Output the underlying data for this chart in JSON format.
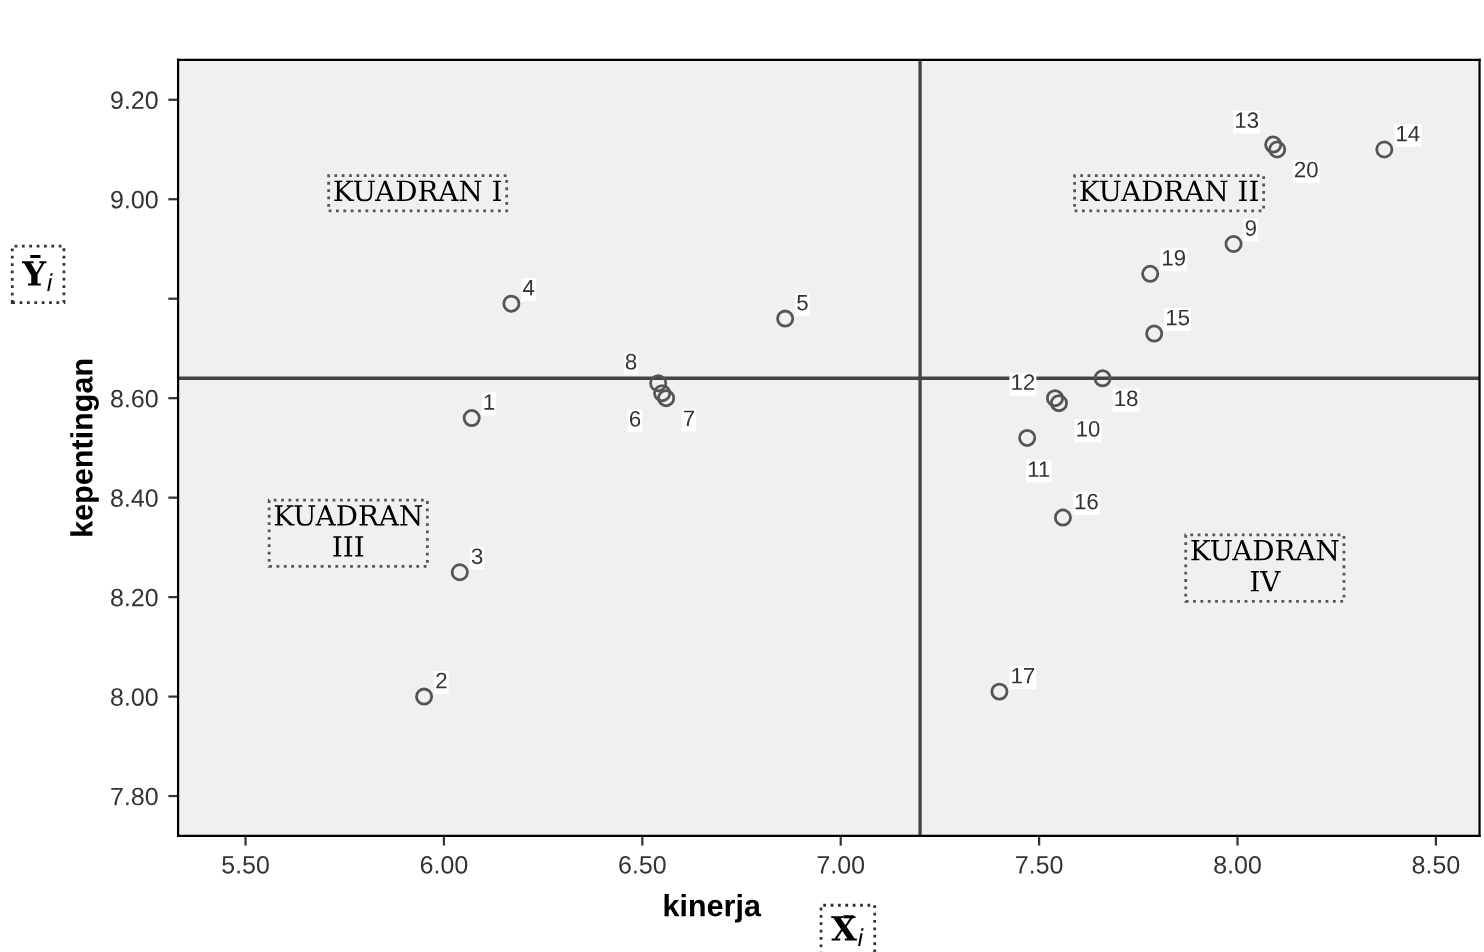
{
  "chart_data": {
    "type": "scatter",
    "xlabel": "kinerja",
    "ylabel": "kepentingan",
    "x": [
      6.07,
      5.95,
      6.04,
      6.17,
      6.86,
      6.55,
      6.56,
      6.54,
      7.99,
      7.55,
      7.47,
      7.54,
      8.09,
      8.37,
      7.79,
      7.56,
      7.4,
      7.66,
      7.78,
      8.1
    ],
    "series": [
      {
        "color": "#555555",
        "values": [
          8.56,
          8.0,
          8.25,
          8.79,
          8.76,
          8.61,
          8.6,
          8.63,
          8.91,
          8.59,
          8.52,
          8.6,
          9.11,
          9.1,
          8.73,
          8.36,
          8.01,
          8.64,
          8.85,
          9.1
        ]
      }
    ],
    "marker": "circle",
    "grid": false,
    "xlim": [
      5.33,
      8.61
    ],
    "ylim": [
      7.72,
      9.28
    ],
    "xticks": [
      {
        "value": 5.5,
        "label": "5.50"
      },
      {
        "value": 6.0,
        "label": "6.00"
      },
      {
        "value": 6.5,
        "label": "6.50"
      },
      {
        "value": 7.0,
        "label": "7.00"
      },
      {
        "value": 7.5,
        "label": "7.50"
      },
      {
        "value": 8.0,
        "label": "8.00"
      },
      {
        "value": 8.5,
        "label": "8.50"
      }
    ],
    "yticks": [
      {
        "value": 7.8,
        "label": "7.80"
      },
      {
        "value": 8.0,
        "label": "8.00"
      },
      {
        "value": 8.2,
        "label": "8.20"
      },
      {
        "value": 8.4,
        "label": "8.40"
      },
      {
        "value": 8.6,
        "label": "8.60"
      },
      {
        "value": 8.8,
        "label": null
      },
      {
        "value": 9.0,
        "label": "9.00"
      },
      {
        "value": 9.2,
        "label": "9.20"
      }
    ],
    "ref_lines": [
      {
        "axis": "x",
        "value": 7.2,
        "color": "#444444"
      },
      {
        "axis": "y",
        "value": 8.64,
        "color": "#444444"
      }
    ],
    "annotations": [
      "KUADRAN I",
      "KUADRAN II",
      "KUADRAN\nIII",
      "KUADRAN\nIV",
      "Ȳ$_{i}$",
      "X̄$_{i}$",
      {
        "text": "1",
        "x": 6.07,
        "y": 8.56
      },
      {
        "text": "2",
        "x": 5.95,
        "y": 8.0
      },
      {
        "text": "3",
        "x": 6.04,
        "y": 8.25
      },
      {
        "text": "4",
        "x": 6.17,
        "y": 8.79
      },
      {
        "text": "5",
        "x": 6.86,
        "y": 8.76
      },
      {
        "text": "6",
        "x": 6.55,
        "y": 8.61
      },
      {
        "text": "7",
        "x": 6.56,
        "y": 8.6
      },
      {
        "text": "8",
        "x": 6.54,
        "y": 8.63
      },
      {
        "text": "9",
        "x": 7.99,
        "y": 8.91
      },
      {
        "text": "10",
        "x": 7.55,
        "y": 8.59
      },
      {
        "text": "11",
        "x": 7.47,
        "y": 8.52
      },
      {
        "text": "12",
        "x": 7.54,
        "y": 8.6
      },
      {
        "text": "13",
        "x": 8.09,
        "y": 9.11
      },
      {
        "text": "14",
        "x": 8.37,
        "y": 9.1
      },
      {
        "text": "15",
        "x": 7.79,
        "y": 8.73
      },
      {
        "text": "16",
        "x": 7.56,
        "y": 8.36
      },
      {
        "text": "17",
        "x": 7.4,
        "y": 8.01
      },
      {
        "text": "18",
        "x": 7.66,
        "y": 8.64
      },
      {
        "text": "19",
        "x": 7.78,
        "y": 8.85
      },
      {
        "text": "20",
        "x": 8.1,
        "y": 9.1
      }
    ]
  }
}
